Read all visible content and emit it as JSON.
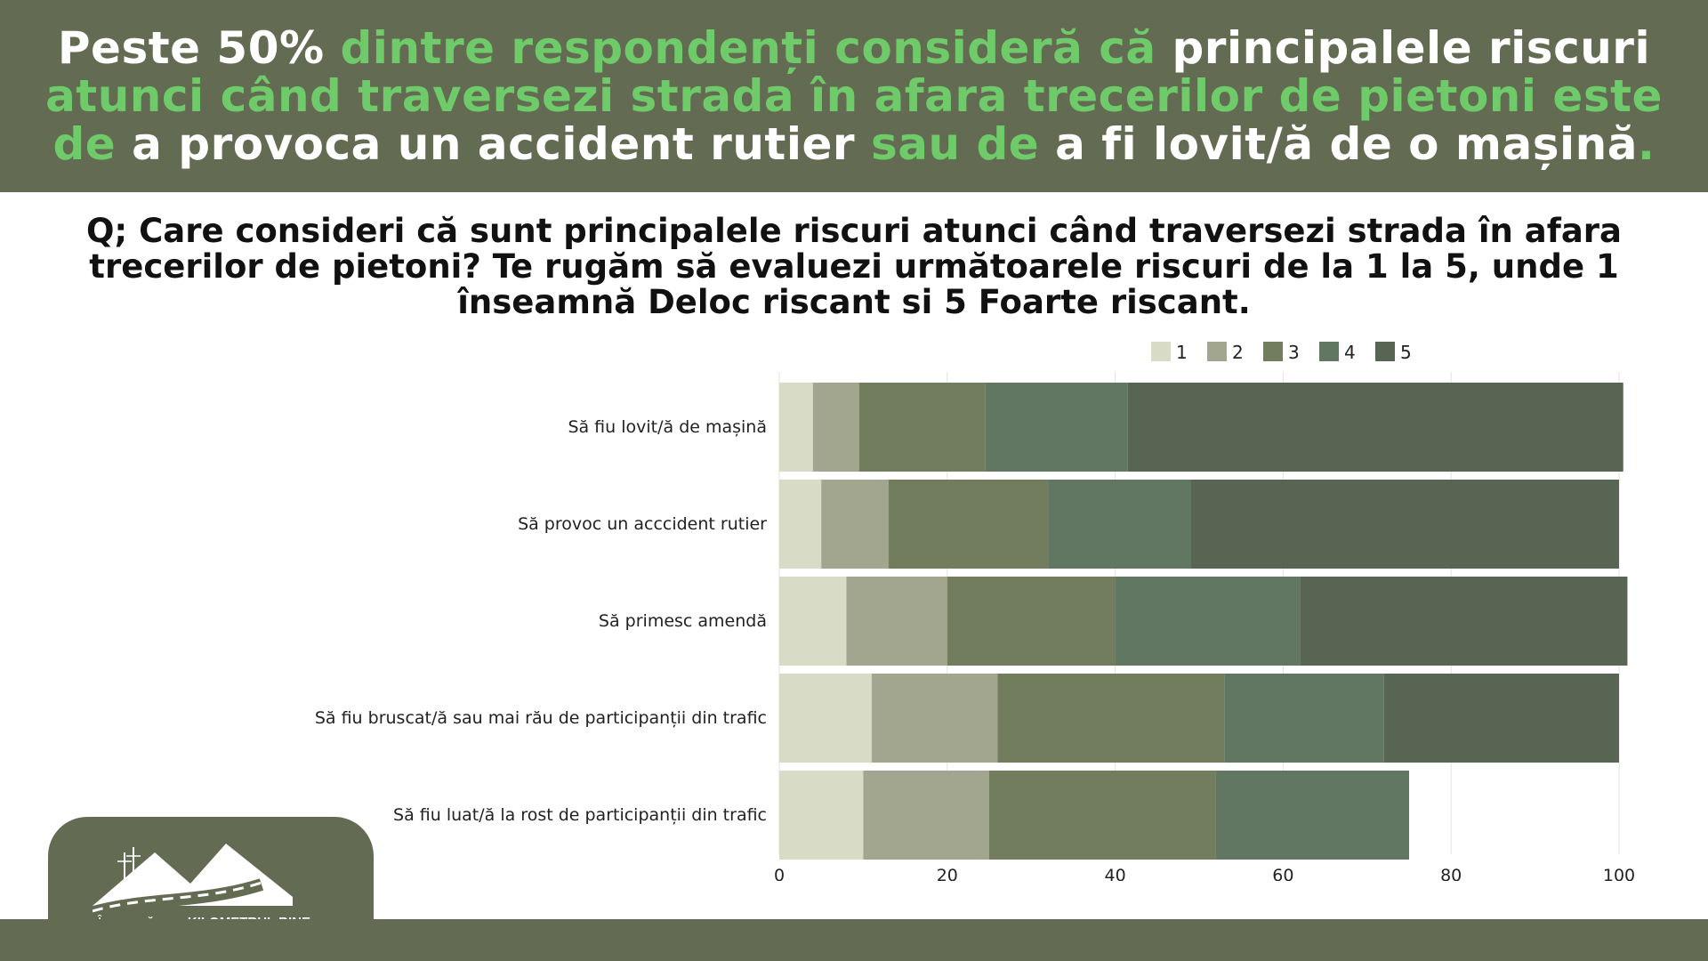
{
  "headline": {
    "line1": [
      {
        "text": "Peste 50% ",
        "color": "white"
      },
      {
        "text": "dintre respondenți consideră că ",
        "color": "green"
      },
      {
        "text": "principalele riscuri",
        "color": "white"
      }
    ],
    "line2": [
      {
        "text": "atunci când traversezi strada în afara trecerilor de pietoni este",
        "color": "green"
      }
    ],
    "line3": [
      {
        "text": "de ",
        "color": "green"
      },
      {
        "text": "a provoca un accident rutier ",
        "color": "white"
      },
      {
        "text": "sau de ",
        "color": "green"
      },
      {
        "text": "a fi lovit/ă de o mașină",
        "color": "white"
      },
      {
        "text": ".",
        "color": "green"
      }
    ]
  },
  "question": {
    "line1": "Q; Care consideri că sunt principalele riscuri atunci când traversezi strada în afara",
    "line2": "trecerilor de pietoni? Te rugăm să evaluezi următoarele riscuri de la 1 la 5, unde 1",
    "line3": "înseamnă Deloc riscant si 5 Foarte riscant."
  },
  "colors": {
    "banner_bg": "#636b52",
    "highlight_green": "#6fca6a",
    "series": [
      "#d8dcc7",
      "#a2a68f",
      "#727d5e",
      "#627762",
      "#586553"
    ]
  },
  "chart_data": {
    "type": "bar",
    "orientation": "horizontal",
    "stacked": true,
    "categories": [
      "Să fiu lovit/ă de mașină",
      "Să provoc un acccident rutier",
      "Să primesc amendă",
      "Să fiu bruscat/ă sau mai rău de participanții din trafic",
      "Să fiu luat/ă la rost de participanții din trafic"
    ],
    "series": [
      {
        "name": "1",
        "values": [
          4,
          5,
          8,
          11,
          10
        ]
      },
      {
        "name": "2",
        "values": [
          5.5,
          8,
          12,
          15,
          15
        ]
      },
      {
        "name": "3",
        "values": [
          15,
          19,
          20,
          27,
          27
        ]
      },
      {
        "name": "4",
        "values": [
          17,
          17,
          22,
          19,
          23
        ]
      },
      {
        "name": "5",
        "values": [
          59,
          51,
          39,
          28,
          0
        ]
      }
    ],
    "xlim": [
      0,
      100
    ],
    "xticks": [
      0,
      20,
      40,
      60,
      80,
      100
    ],
    "grid": true,
    "legend_position": "top-right"
  },
  "logo": {
    "text_regular": "Împreună spre ",
    "text_bold": "KILOMETRUL BINE"
  }
}
